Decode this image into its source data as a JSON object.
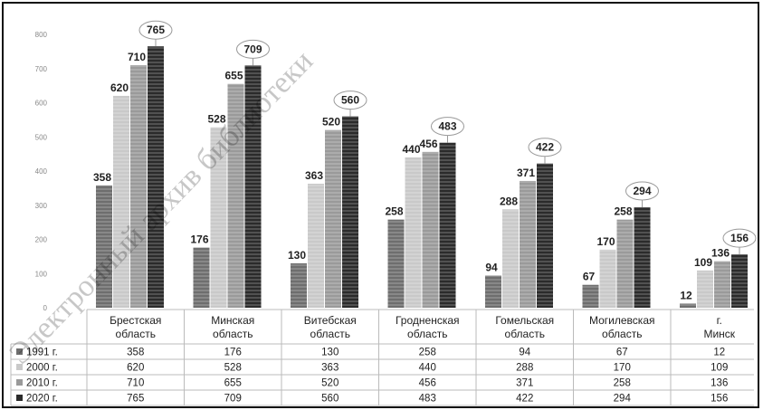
{
  "chart_data": {
    "type": "bar",
    "categories": [
      "Брестская область",
      "Минская область",
      "Витебская область",
      "Гродненская область",
      "Гомельская область",
      "Могилевская область",
      "г. Минск"
    ],
    "series": [
      {
        "name": "1991 г.",
        "values": [
          358,
          176,
          130,
          258,
          94,
          67,
          12
        ],
        "color": "#6e6e6e"
      },
      {
        "name": "2000 г.",
        "values": [
          620,
          528,
          363,
          440,
          288,
          170,
          109
        ],
        "color": "#c9c9c9"
      },
      {
        "name": "2010 г.",
        "values": [
          710,
          655,
          520,
          456,
          371,
          258,
          136
        ],
        "color": "#9a9a9a"
      },
      {
        "name": "2020 г.",
        "values": [
          765,
          709,
          560,
          483,
          422,
          294,
          156
        ],
        "color": "#2b2b2b"
      }
    ],
    "y_ticks": [
      0,
      100,
      200,
      300,
      400,
      500,
      600,
      700,
      800
    ],
    "ylim": [
      0,
      800
    ],
    "highlighted_series": "2020 г.",
    "data_table": true,
    "title": "",
    "xlabel": "",
    "ylabel": ""
  },
  "watermark": {
    "text": "Электронный архив библиотеки",
    "color": "#000000"
  }
}
